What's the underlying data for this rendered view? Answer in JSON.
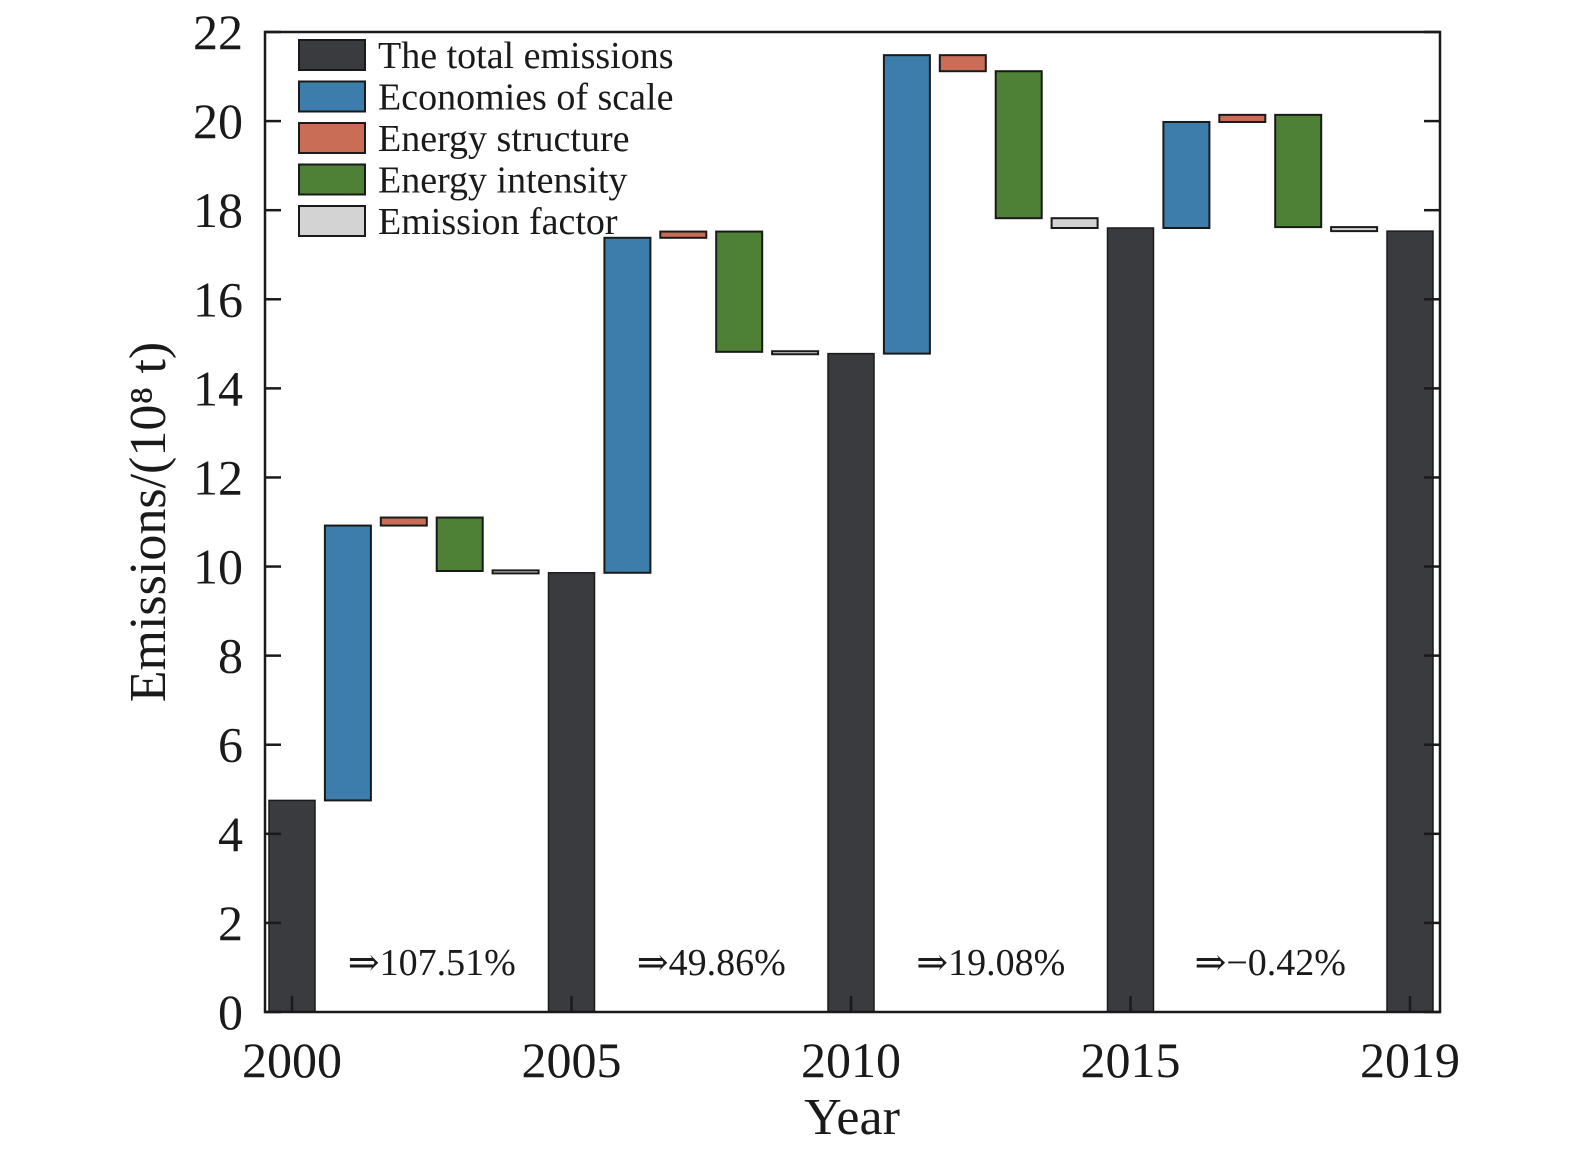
{
  "chart_data": {
    "type": "bar",
    "subtype": "waterfall",
    "xlabel": "Year",
    "ylabel": "Emissions/(10⁸ t)",
    "ylim": [
      0,
      22
    ],
    "yticks": [
      0,
      2,
      4,
      6,
      8,
      10,
      12,
      14,
      16,
      18,
      20,
      22
    ],
    "xticks": [
      "2000",
      "2005",
      "2010",
      "2015",
      "2019"
    ],
    "legend_position": "top-left",
    "grid": false,
    "series": [
      {
        "name": "The total emissions",
        "color": "#3a3b3f"
      },
      {
        "name": "Economies of scale",
        "color": "#3d7dab"
      },
      {
        "name": "Energy structure",
        "color": "#c96d57"
      },
      {
        "name": "Energy intensity",
        "color": "#4e8035"
      },
      {
        "name": "Emission factor",
        "color": "#d3d3d3"
      }
    ],
    "totals": [
      {
        "year": "2000",
        "value": 4.75
      },
      {
        "year": "2005",
        "value": 9.86
      },
      {
        "year": "2010",
        "value": 14.78
      },
      {
        "year": "2015",
        "value": 17.6
      },
      {
        "year": "2019",
        "value": 17.53
      }
    ],
    "periods": [
      {
        "label": "2000-2005",
        "change": "⇒107.51%",
        "segments": [
          {
            "series": "Economies of scale",
            "from": 4.75,
            "to": 10.92
          },
          {
            "series": "Energy structure",
            "from": 10.92,
            "to": 11.1
          },
          {
            "series": "Energy intensity",
            "from": 11.1,
            "to": 9.9
          },
          {
            "series": "Emission factor",
            "from": 9.9,
            "to": 9.86
          }
        ]
      },
      {
        "label": "2005-2010",
        "change": "⇒49.86%",
        "segments": [
          {
            "series": "Economies of scale",
            "from": 9.86,
            "to": 17.38
          },
          {
            "series": "Energy structure",
            "from": 17.38,
            "to": 17.52
          },
          {
            "series": "Energy intensity",
            "from": 17.52,
            "to": 14.82
          },
          {
            "series": "Emission factor",
            "from": 14.82,
            "to": 14.78
          }
        ]
      },
      {
        "label": "2010-2015",
        "change": "⇒19.08%",
        "segments": [
          {
            "series": "Economies of scale",
            "from": 14.78,
            "to": 21.48
          },
          {
            "series": "Energy structure",
            "from": 21.48,
            "to": 21.12
          },
          {
            "series": "Energy intensity",
            "from": 21.12,
            "to": 17.82
          },
          {
            "series": "Emission factor",
            "from": 17.82,
            "to": 17.6
          }
        ]
      },
      {
        "label": "2015-2019",
        "change": "⇒−0.42%",
        "segments": [
          {
            "series": "Economies of scale",
            "from": 17.6,
            "to": 19.98
          },
          {
            "series": "Energy structure",
            "from": 19.98,
            "to": 20.14
          },
          {
            "series": "Energy intensity",
            "from": 20.14,
            "to": 17.62
          },
          {
            "series": "Emission factor",
            "from": 17.62,
            "to": 17.53
          }
        ]
      }
    ]
  }
}
